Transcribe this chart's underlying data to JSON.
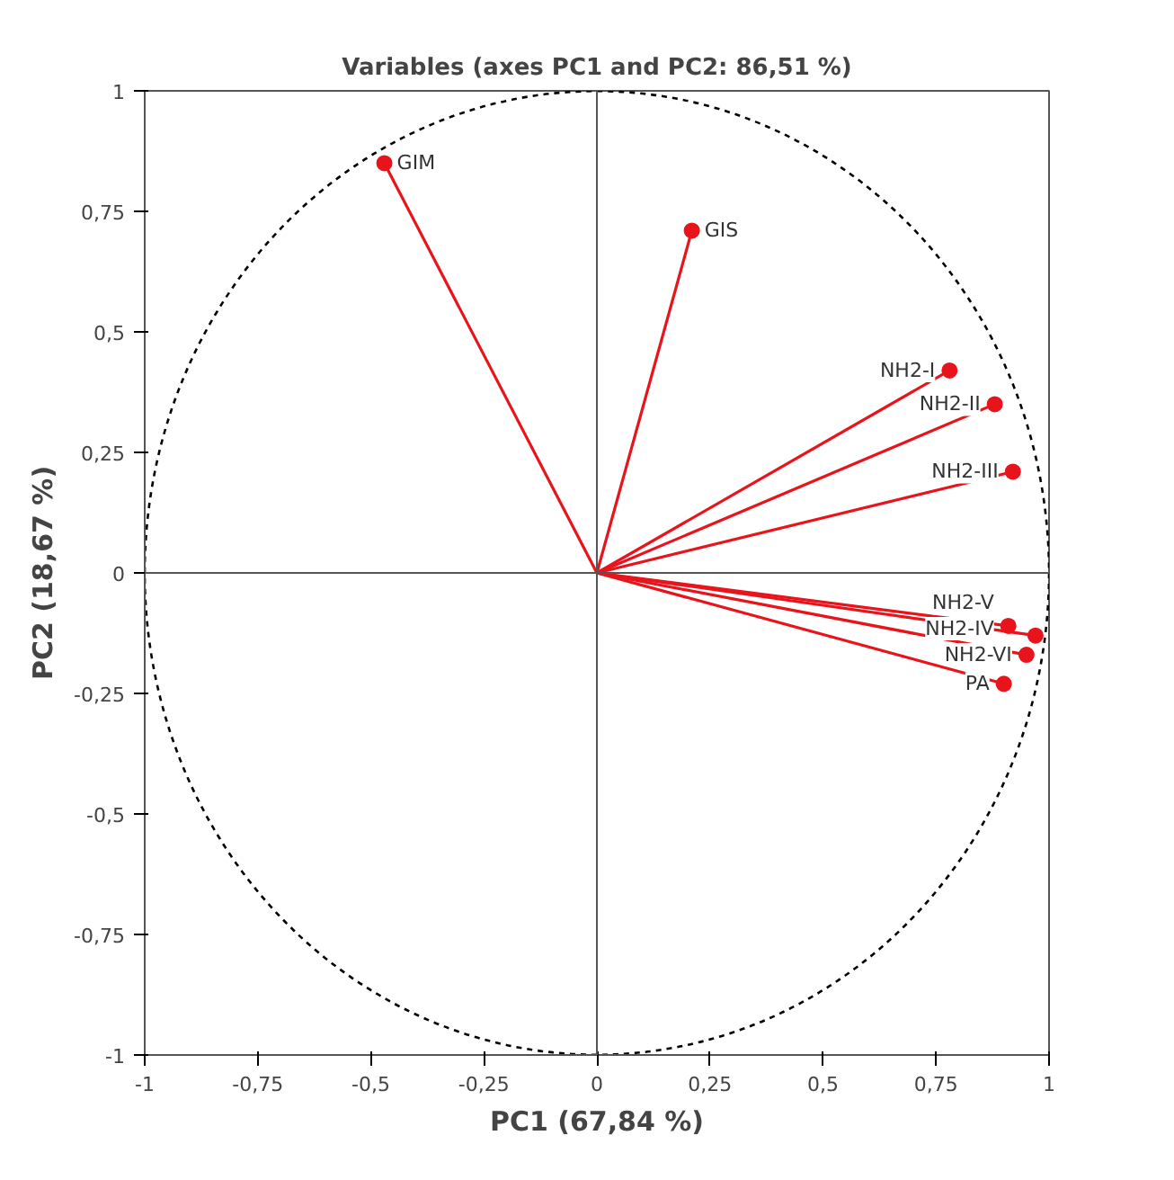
{
  "chart_data": {
    "type": "line",
    "title": "Variables (axes PC1 and PC2: 86,51 %)",
    "xlabel": "PC1 (67,84 %)",
    "ylabel": "PC2 (18,67 %)",
    "xlim": [
      -1,
      1
    ],
    "ylim": [
      -1,
      1
    ],
    "xticks": [
      {
        "value": -1,
        "label": "-1"
      },
      {
        "value": -0.75,
        "label": "-0,75"
      },
      {
        "value": -0.5,
        "label": "-0,5"
      },
      {
        "value": -0.25,
        "label": "-0,25"
      },
      {
        "value": 0,
        "label": "0"
      },
      {
        "value": 0.25,
        "label": "0,25"
      },
      {
        "value": 0.5,
        "label": "0,5"
      },
      {
        "value": 0.75,
        "label": "0,75"
      },
      {
        "value": 1,
        "label": "1"
      }
    ],
    "yticks": [
      {
        "value": -1,
        "label": "-1"
      },
      {
        "value": -0.75,
        "label": "-0,75"
      },
      {
        "value": -0.5,
        "label": "-0,5"
      },
      {
        "value": -0.25,
        "label": "-0,25"
      },
      {
        "value": 0,
        "label": "0"
      },
      {
        "value": 0.25,
        "label": "0,25"
      },
      {
        "value": 0.5,
        "label": "0,5"
      },
      {
        "value": 0.75,
        "label": "0,75"
      },
      {
        "value": 1,
        "label": "1"
      }
    ],
    "series": [
      {
        "type": "scatter",
        "marker": "circle",
        "color": "#e8141c",
        "x": [
          -0.47,
          0.21,
          0.78,
          0.88,
          0.92,
          0.91,
          0.97,
          0.95,
          0.9
        ],
        "values": [
          0.85,
          0.71,
          0.42,
          0.35,
          0.21,
          -0.11,
          -0.13,
          -0.17,
          -0.23
        ]
      },
      {
        "color": "#e8141c",
        "x": [
          0,
          -0.47
        ],
        "values": [
          0,
          0.85
        ]
      },
      {
        "color": "#e8141c",
        "x": [
          0,
          0.21
        ],
        "values": [
          0,
          0.71
        ]
      },
      {
        "color": "#e8141c",
        "x": [
          0,
          0.78
        ],
        "values": [
          0,
          0.42
        ]
      },
      {
        "color": "#e8141c",
        "x": [
          0,
          0.88
        ],
        "values": [
          0,
          0.35
        ]
      },
      {
        "color": "#e8141c",
        "x": [
          0,
          0.92
        ],
        "values": [
          0,
          0.21
        ]
      },
      {
        "color": "#e8141c",
        "x": [
          0,
          0.91
        ],
        "values": [
          0,
          -0.11
        ]
      },
      {
        "color": "#e8141c",
        "x": [
          0,
          0.97
        ],
        "values": [
          0,
          -0.13
        ]
      },
      {
        "color": "#e8141c",
        "x": [
          0,
          0.95
        ],
        "values": [
          0,
          -0.17
        ]
      },
      {
        "color": "#e8141c",
        "x": [
          0,
          0.9
        ],
        "values": [
          0,
          -0.23
        ]
      }
    ],
    "annotations": [
      {
        "text": "GIM",
        "x": -0.47,
        "y": 0.85
      },
      {
        "text": "GIS",
        "x": 0.21,
        "y": 0.71
      },
      {
        "text": "NH2-I",
        "x": 0.78,
        "y": 0.42
      },
      {
        "text": "NH2-II",
        "x": 0.88,
        "y": 0.35
      },
      {
        "text": "NH2-III",
        "x": 0.92,
        "y": 0.21
      },
      {
        "text": "NH2-V",
        "x": 0.91,
        "y": -0.11
      },
      {
        "text": "NH2-IV",
        "x": 0.97,
        "y": -0.13
      },
      {
        "text": "NH2-VI",
        "x": 0.95,
        "y": -0.17
      },
      {
        "text": "PA",
        "x": 0.9,
        "y": -0.23
      }
    ]
  }
}
